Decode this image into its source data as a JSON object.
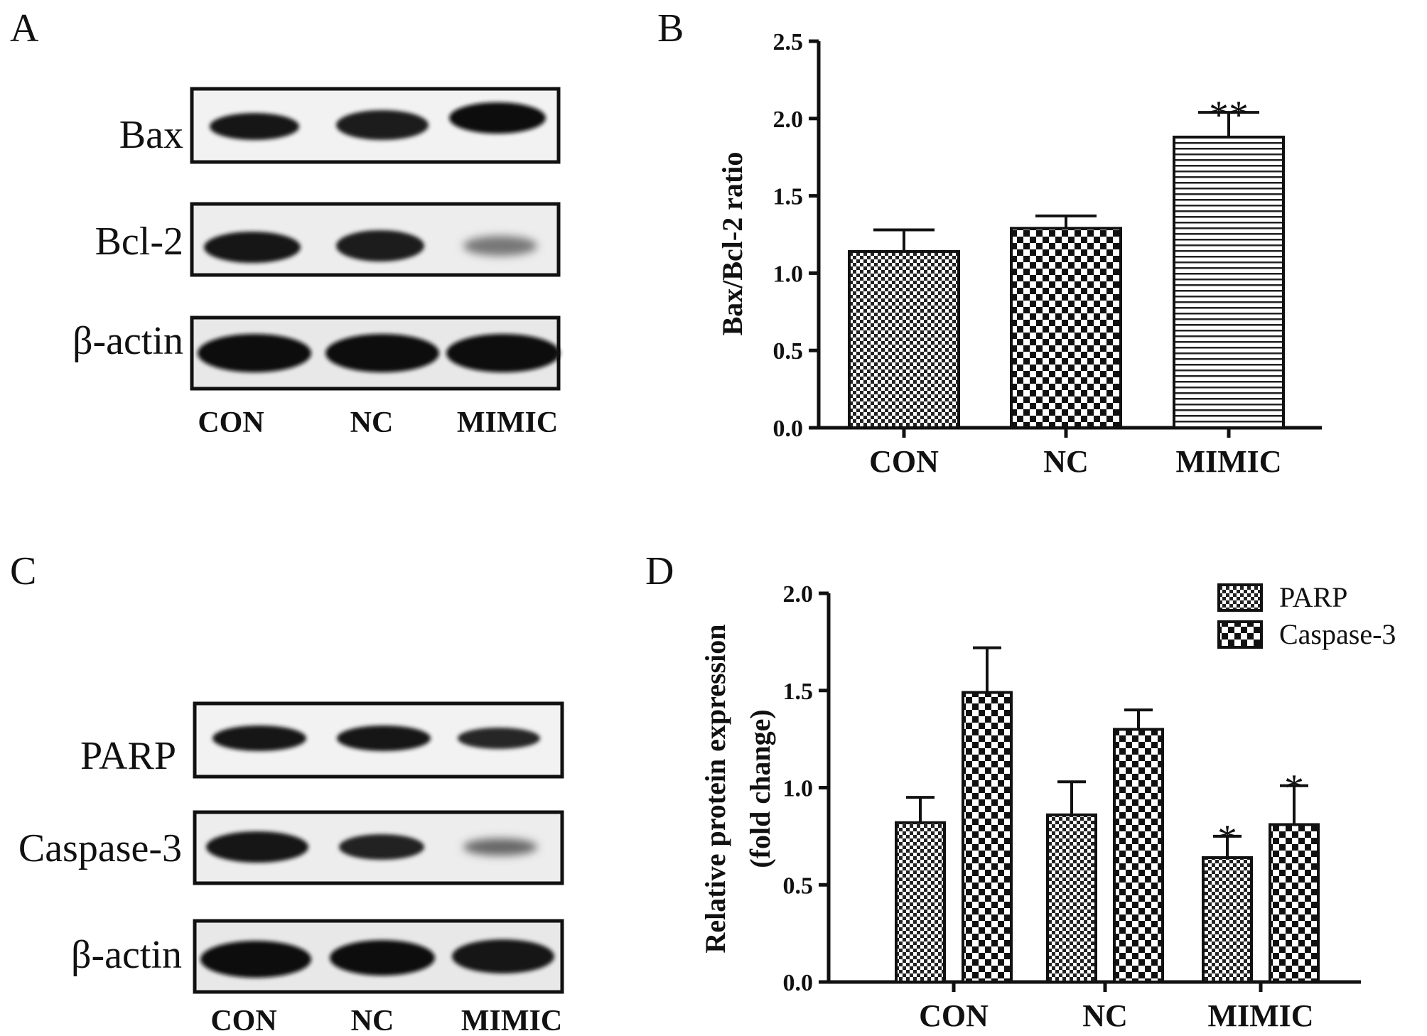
{
  "panels": {
    "A": {
      "letter": "A",
      "blots": [
        "Bax",
        "Bcl-2",
        "β-actin"
      ],
      "lanes": [
        "CON",
        "NC",
        "MIMIC"
      ]
    },
    "C": {
      "letter": "C",
      "blots": [
        "PARP",
        "Caspase-3",
        "β-actin"
      ],
      "lanes": [
        "CON",
        "NC",
        "MIMIC"
      ]
    }
  },
  "chart_data": [
    {
      "panel": "B",
      "type": "bar",
      "ylabel": "Bax/Bcl-2 ratio",
      "categories": [
        "CON",
        "NC",
        "MIMIC"
      ],
      "ylim": [
        0,
        2.5
      ],
      "yticks": [
        "0.0",
        "0.5",
        "1.0",
        "1.5",
        "2.0",
        "2.5"
      ],
      "series": [
        {
          "values": [
            1.14,
            1.29,
            1.88
          ],
          "errors": [
            0.14,
            0.08,
            0.16
          ],
          "annotations": [
            "",
            "",
            "**"
          ],
          "pattern": "fine-check"
        }
      ],
      "grid": false
    },
    {
      "panel": "D",
      "type": "bar",
      "ylabel": "Relative protein expression",
      "ylabel2": "(fold change)",
      "categories": [
        "CON",
        "NC",
        "MIMIC"
      ],
      "ylim": [
        0,
        2.0
      ],
      "yticks": [
        "0.0",
        "0.5",
        "1.0",
        "1.5",
        "2.0"
      ],
      "legend_position": "top-right",
      "series": [
        {
          "name": "PARP",
          "values": [
            0.82,
            0.86,
            0.64
          ],
          "errors": [
            0.13,
            0.17,
            0.11
          ],
          "annotations": [
            "",
            "",
            "*"
          ],
          "pattern": "fine-check"
        },
        {
          "name": "Caspase-3",
          "values": [
            1.49,
            1.3,
            0.81
          ],
          "errors": [
            0.23,
            0.1,
            0.2
          ],
          "annotations": [
            "",
            "",
            "*"
          ],
          "pattern": "coarse-check"
        }
      ],
      "grid": false
    }
  ]
}
